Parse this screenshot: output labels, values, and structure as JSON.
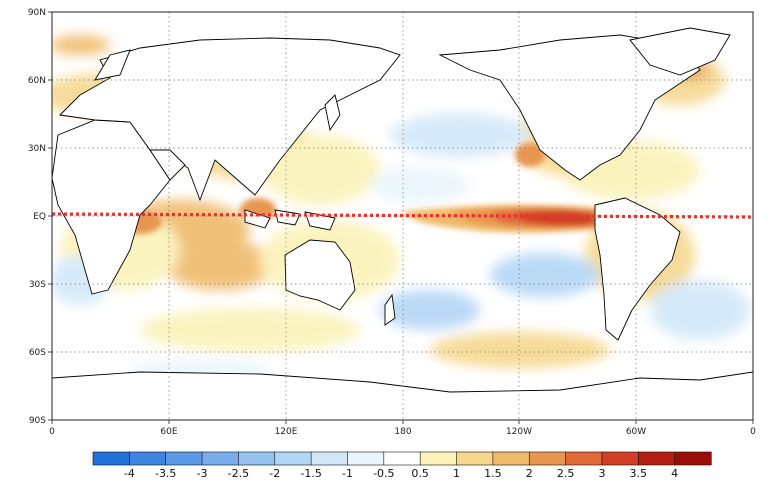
{
  "map": {
    "lat_labels": [
      "90N",
      "60N",
      "30N",
      "EQ",
      "30S",
      "60S",
      "90S"
    ],
    "lon_labels": [
      "0",
      "60E",
      "120E",
      "180",
      "120W",
      "60W",
      "0"
    ],
    "equator_line_color": "#e8322c"
  },
  "colorbar": {
    "labels": [
      "-4",
      "-3.5",
      "-3",
      "-2.5",
      "-2",
      "-1.5",
      "-1",
      "-0.5",
      "0.5",
      "1",
      "1.5",
      "2",
      "2.5",
      "3",
      "3.5",
      "4"
    ],
    "colors": [
      "#1e6fd8",
      "#3d85e0",
      "#5a99e6",
      "#78adeb",
      "#96c2f0",
      "#b3d6f5",
      "#d2e8f9",
      "#eaf5fc",
      "#ffffff",
      "#fbf2b8",
      "#f5d88e",
      "#efba6b",
      "#e89550",
      "#df6a38",
      "#d03f24",
      "#b51e12",
      "#9a0e08"
    ]
  }
}
